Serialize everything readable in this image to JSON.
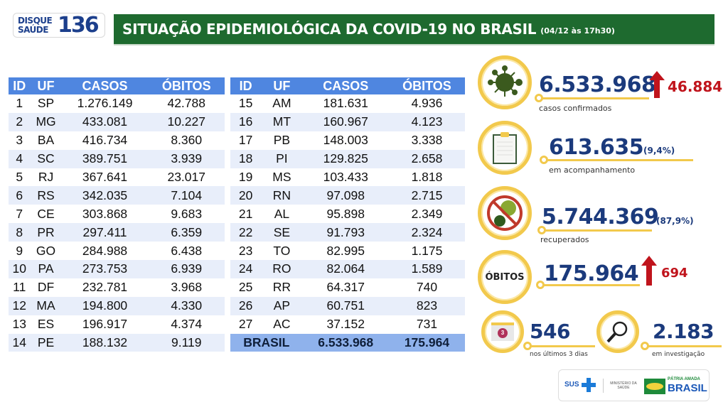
{
  "header": {
    "logo_line1": "DISQUE",
    "logo_line2": "SAÚDE",
    "logo_number": "136",
    "title": "SITUAÇÃO EPIDEMIOLÓGICA DA COVID-19 NO BRASIL",
    "date": "(04/12 às 17h30)"
  },
  "table": {
    "columns": [
      "ID",
      "UF",
      "CASOS",
      "ÓBITOS"
    ],
    "left_rows": [
      [
        "1",
        "SP",
        "1.276.149",
        "42.788"
      ],
      [
        "2",
        "MG",
        "433.081",
        "10.227"
      ],
      [
        "3",
        "BA",
        "416.734",
        "8.360"
      ],
      [
        "4",
        "SC",
        "389.751",
        "3.939"
      ],
      [
        "5",
        "RJ",
        "367.641",
        "23.017"
      ],
      [
        "6",
        "RS",
        "342.035",
        "7.104"
      ],
      [
        "7",
        "CE",
        "303.868",
        "9.683"
      ],
      [
        "8",
        "PR",
        "297.411",
        "6.359"
      ],
      [
        "9",
        "GO",
        "284.988",
        "6.438"
      ],
      [
        "10",
        "PA",
        "273.753",
        "6.939"
      ],
      [
        "11",
        "DF",
        "232.781",
        "3.968"
      ],
      [
        "12",
        "MA",
        "194.800",
        "4.330"
      ],
      [
        "13",
        "ES",
        "196.917",
        "4.374"
      ],
      [
        "14",
        "PE",
        "188.132",
        "9.119"
      ]
    ],
    "right_rows": [
      [
        "15",
        "AM",
        "181.631",
        "4.936"
      ],
      [
        "16",
        "MT",
        "160.967",
        "4.123"
      ],
      [
        "17",
        "PB",
        "148.003",
        "3.338"
      ],
      [
        "18",
        "PI",
        "129.825",
        "2.658"
      ],
      [
        "19",
        "MS",
        "103.433",
        "1.818"
      ],
      [
        "20",
        "RN",
        "97.098",
        "2.715"
      ],
      [
        "21",
        "AL",
        "95.898",
        "2.349"
      ],
      [
        "22",
        "SE",
        "91.793",
        "2.324"
      ],
      [
        "23",
        "TO",
        "82.995",
        "1.175"
      ],
      [
        "24",
        "RO",
        "82.064",
        "1.589"
      ],
      [
        "25",
        "RR",
        "64.317",
        "740"
      ],
      [
        "26",
        "AP",
        "60.751",
        "823"
      ],
      [
        "27",
        "AC",
        "37.152",
        "731"
      ]
    ],
    "total": {
      "label": "BRASIL",
      "casos": "6.533.968",
      "obitos": "175.964"
    }
  },
  "stats": {
    "confirmed": {
      "value": "6.533.968",
      "increase": "46.884",
      "label": "casos confirmados",
      "icon": "virus-icon"
    },
    "monitoring": {
      "value": "613.635",
      "percent": "(9,4%)",
      "label": "em acompanhamento",
      "icon": "clipboard-icon"
    },
    "recovered": {
      "value": "5.744.369",
      "percent": "(87,9%)",
      "label": "recuperados",
      "icon": "no-virus-icon"
    },
    "deaths": {
      "badge": "ÓBITOS",
      "value": "175.964",
      "increase": "694"
    },
    "recent": {
      "value": "546",
      "label": "nos últimos 3 dias",
      "calendar_number": "3",
      "icon": "calendar-icon"
    },
    "investigation": {
      "value": "2.183",
      "label": "em investigação",
      "icon": "magnifier-icon"
    }
  },
  "footer": {
    "sus": "SUS",
    "ministry": "MINISTÉRIO DA SAÚDE",
    "patria": "PÁTRIA AMADA",
    "brasil": "BRASIL"
  },
  "colors": {
    "green": "#1e6a2f",
    "blue": "#1b3a7c",
    "yellow": "#f2c94c",
    "red": "#c0141c",
    "table_header": "#4f86e0"
  }
}
